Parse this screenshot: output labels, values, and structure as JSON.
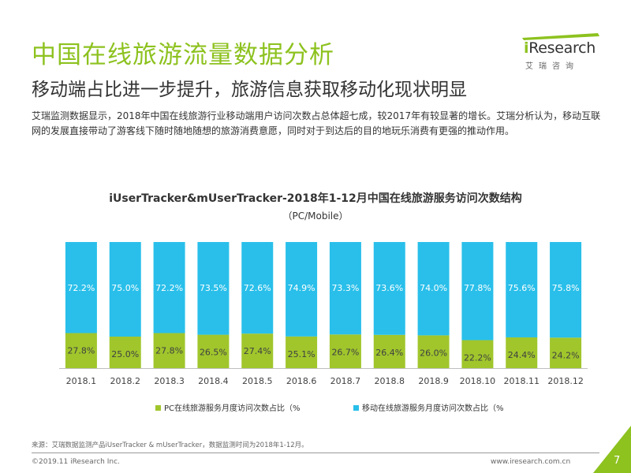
{
  "header": {
    "title": "中国在线旅游流量数据分析",
    "subtitle": "移动端占比进一步提升，旅游信息获取移动化现状明显",
    "intro": "艾瑞监测数据显示，2018年中国在线旅游行业移动端用户访问次数占总体超七成，较2017年有较显著的增长。艾瑞分析认为，移动互联网的发展直接带动了游客线下随时随地随想的旅游消费意愿，同时对于到达后的目的地玩乐消费有更强的推动作用。"
  },
  "logo": {
    "i": "i",
    "name": "Research",
    "sub": "艾瑞咨询"
  },
  "chart_data": {
    "type": "bar",
    "stacked": true,
    "percent_stacked": true,
    "title": "iUserTracker&mUserTracker-2018年1-12月中国在线旅游服务访问次数结构",
    "subtitle": "（PC/Mobile）",
    "categories": [
      "2018.1",
      "2018.2",
      "2018.3",
      "2018.4",
      "2018.5",
      "2018.6",
      "2018.7",
      "2018.8",
      "2018.9",
      "2018.10",
      "2018.11",
      "2018.12"
    ],
    "series": [
      {
        "name": "PC在线旅游服务月度访问次数占比（%",
        "color": "#a0c62c",
        "values": [
          27.8,
          25.0,
          27.8,
          26.5,
          27.4,
          25.1,
          26.7,
          26.4,
          26.0,
          22.2,
          24.4,
          24.2
        ],
        "labels": [
          "27.8%",
          "25.0%",
          "27.8%",
          "26.5%",
          "27.4%",
          "25.1%",
          "26.7%",
          "26.4%",
          "26.0%",
          "22.2%",
          "24.4%",
          "24.2%"
        ]
      },
      {
        "name": "移动在线旅游服务月度访问次数占比（%",
        "color": "#29bfea",
        "values": [
          72.2,
          75.0,
          72.2,
          73.5,
          72.6,
          74.9,
          73.3,
          73.6,
          74.0,
          77.8,
          75.6,
          75.8
        ],
        "labels": [
          "72.2%",
          "75.0%",
          "72.2%",
          "73.5%",
          "72.6%",
          "74.9%",
          "73.3%",
          "73.6%",
          "74.0%",
          "77.8%",
          "75.6%",
          "75.8%"
        ]
      }
    ],
    "ylim": [
      0,
      100
    ],
    "legend": "bottom",
    "grid": false
  },
  "footer": {
    "source": "来源：艾瑞数据监测产品iUserTracker & mUserTracker，数据监测时间为2018年1-12月。",
    "copyright": "©2019.11 iResearch Inc.",
    "website": "www.iresearch.com.cn",
    "page": "7"
  }
}
